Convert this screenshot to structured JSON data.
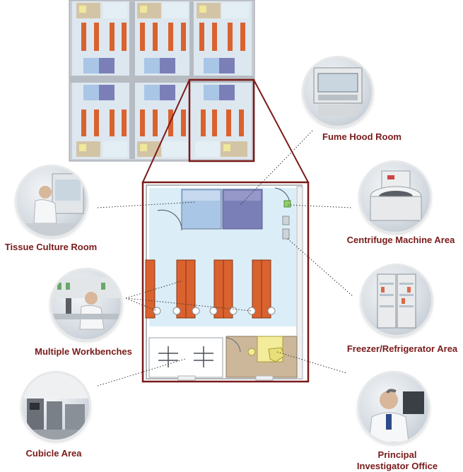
{
  "areas": [
    {
      "id": "fume-hood",
      "label": "Fume Hood Room",
      "icon": "fume-hood-photo"
    },
    {
      "id": "tissue-culture",
      "label": "Tissue Culture Room",
      "icon": "tissue-culture-photo"
    },
    {
      "id": "centrifuge",
      "label": "Centrifuge Machine Area",
      "icon": "centrifuge-photo"
    },
    {
      "id": "workbenches",
      "label": "Multiple Workbenches",
      "icon": "workbench-photo"
    },
    {
      "id": "freezer",
      "label": "Freezer/Refrigerator Area",
      "icon": "freezer-photo"
    },
    {
      "id": "cubicle",
      "label": "Cubicle Area",
      "icon": "cubicle-photo"
    },
    {
      "id": "pi-office",
      "label_line1": "Principal",
      "label_line2": "Investigator Office",
      "icon": "office-photo"
    }
  ],
  "colors": {
    "label": "#7a1a1a",
    "highlight_frame": "#7a1a1a",
    "floor": "#dbeef8",
    "bench": "#d9622f",
    "hood_light": "#a9c6e6",
    "hood_dark": "#7b7fb8",
    "office": "#cdb79a",
    "desk": "#f3ec9a"
  }
}
